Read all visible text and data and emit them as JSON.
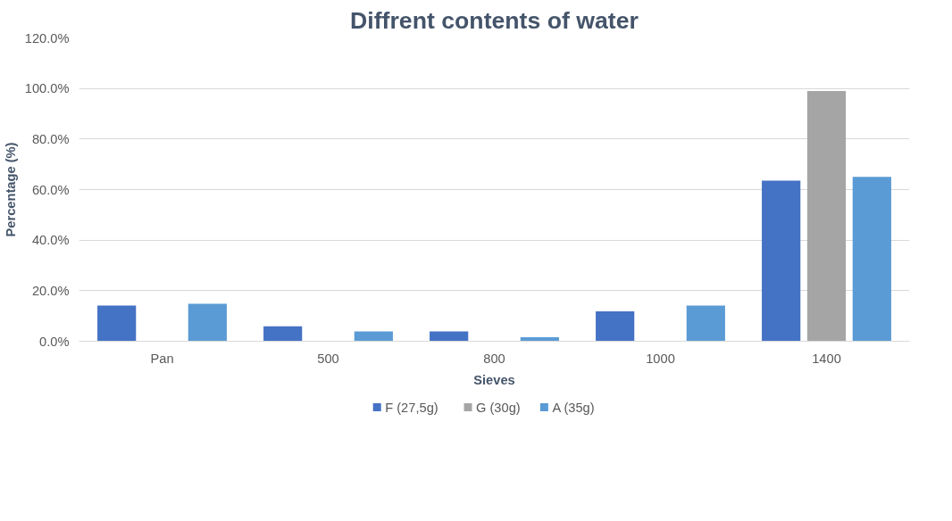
{
  "chart_data": {
    "type": "bar",
    "title": "Diffrent contents of water",
    "xlabel": "Sieves",
    "ylabel": "Percentage (%)",
    "categories": [
      "Pan",
      "500",
      "800",
      "1000",
      "1400"
    ],
    "series": [
      {
        "name": "F (27,5g)",
        "color": "#4472c4",
        "values": [
          14.1,
          5.9,
          3.9,
          11.8,
          63.5
        ]
      },
      {
        "name": "G (30g)",
        "color": "#a5a5a5",
        "values": [
          0,
          0,
          0,
          0,
          99
        ]
      },
      {
        "name": "A (35g)",
        "color": "#5b9bd5",
        "values": [
          14.8,
          3.9,
          1.6,
          14.1,
          65
        ]
      }
    ],
    "ylim": [
      0,
      120
    ],
    "yticks": [
      {
        "value": 0,
        "label": "0.0%"
      },
      {
        "value": 20,
        "label": "20.0%"
      },
      {
        "value": 40,
        "label": "40.0%"
      },
      {
        "value": 60,
        "label": "60.0%"
      },
      {
        "value": 80,
        "label": "80.0%"
      },
      {
        "value": 100,
        "label": "100.0%"
      },
      {
        "value": 120,
        "label": "120.0%"
      }
    ],
    "grid": "y",
    "legend": "bottom"
  }
}
